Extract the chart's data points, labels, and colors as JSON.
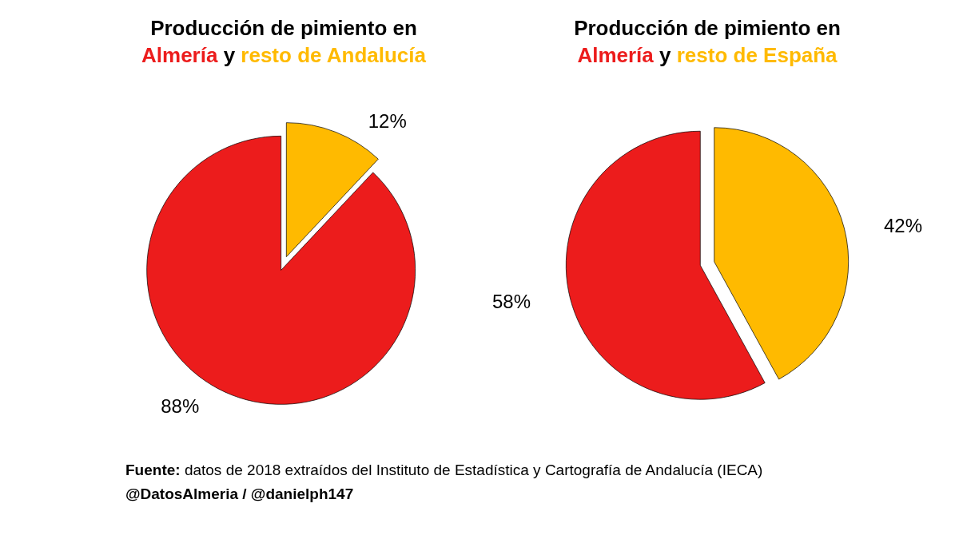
{
  "chart_data": [
    {
      "type": "pie",
      "title": "Producción de pimiento en",
      "categories": [
        "Almería",
        "resto de Andalucía"
      ],
      "values": [
        88,
        12
      ],
      "value_labels": [
        "88%",
        "12%"
      ],
      "colors": [
        "#ec1c1c",
        "#ffba00"
      ],
      "annotations": [
        "y"
      ]
    },
    {
      "type": "pie",
      "title": "Producción de pimiento en",
      "categories": [
        "Almería",
        "resto de España"
      ],
      "values": [
        58,
        42
      ],
      "value_labels": [
        "58%",
        "42%"
      ],
      "colors": [
        "#ec1c1c",
        "#ffba00"
      ],
      "annotations": [
        "y",
        "Fuente: datos de 2018 extraídos del Instituto de Estadística y Cartografía de Andalucía (IECA)",
        "@DatosAlmeria / @danielph147"
      ]
    }
  ]
}
